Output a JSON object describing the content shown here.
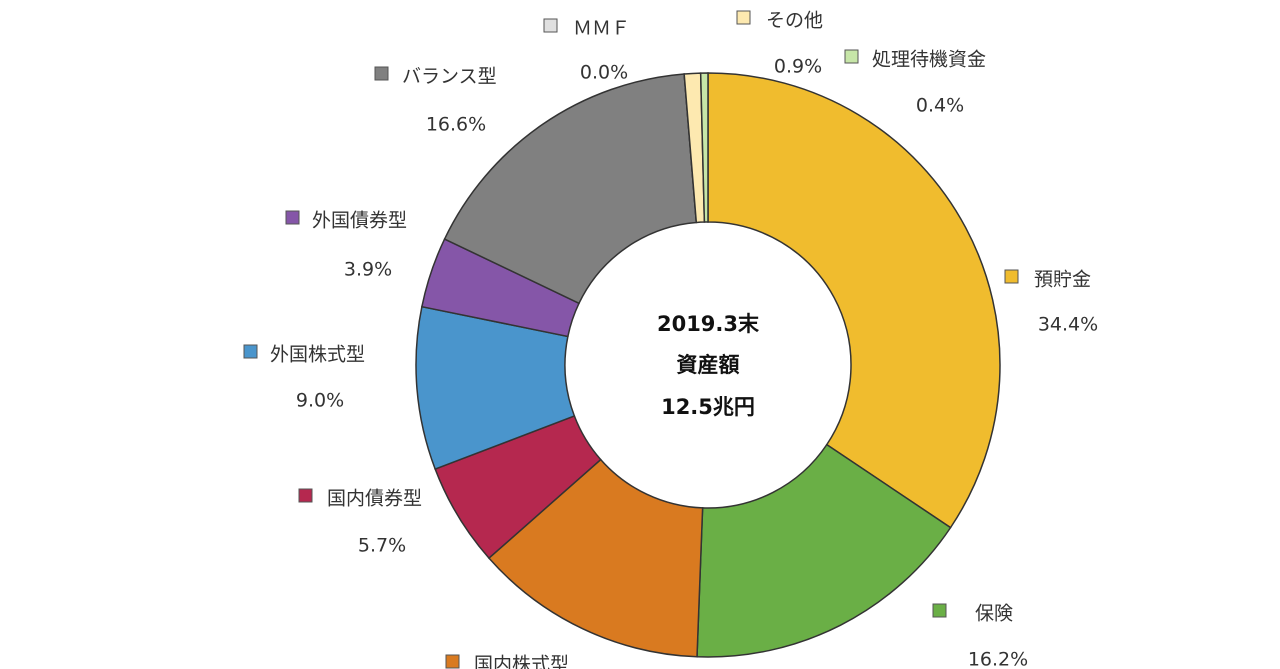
{
  "chart_data": {
    "type": "donut",
    "center_text": [
      "2019.3末",
      "資産額",
      "12.5兆円"
    ],
    "categories": [
      "預貯金",
      "保険",
      "国内株式型",
      "国内債券型",
      "外国株式型",
      "外国債券型",
      "バランス型",
      "ＭＭＦ",
      "その他",
      "処理待機資金"
    ],
    "values": [
      34.4,
      16.2,
      12.9,
      5.7,
      9.0,
      3.9,
      16.6,
      0.0,
      0.9,
      0.4
    ],
    "value_labels": [
      "34.4%",
      "16.2%",
      null,
      "5.7%",
      "9.0%",
      "3.9%",
      "16.6%",
      "0.0%",
      "0.9%",
      "0.4%"
    ],
    "colors": [
      "#f0bc2e",
      "#6aaf46",
      "#d97a20",
      "#b5284f",
      "#4a95cc",
      "#8556a8",
      "#808080",
      "#e0e0e0",
      "#fde9b0",
      "#c7e6a8"
    ]
  }
}
